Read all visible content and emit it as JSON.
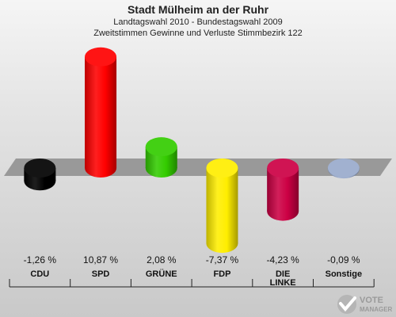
{
  "header": {
    "title": "Stadt Mülheim an der Ruhr",
    "subtitle1": "Landtagswahl 2010 - Bundestagswahl 2009",
    "subtitle2": "Zweitstimmen Gewinne und Verluste Stimmbezirk 122"
  },
  "chart_data": {
    "type": "bar",
    "title": "Stadt Mülheim an der Ruhr",
    "subtitle": "Landtagswahl 2010 - Bundestagswahl 2009 / Zweitstimmen Gewinne und Verluste Stimmbezirk 122",
    "xlabel": "",
    "ylabel": "",
    "categories": [
      "CDU",
      "SPD",
      "GRÜNE",
      "FDP",
      "DIE LINKE",
      "Sonstige"
    ],
    "category_lines": [
      [
        "CDU"
      ],
      [
        "SPD"
      ],
      [
        "GRÜNE"
      ],
      [
        "FDP"
      ],
      [
        "DIE",
        "LINKE"
      ],
      [
        "Sonstige"
      ]
    ],
    "values": [
      -1.26,
      10.87,
      2.08,
      -7.37,
      -4.23,
      -0.09
    ],
    "value_labels": [
      "-1,26 %",
      "10,87 %",
      "2,08 %",
      "-7,37 %",
      "-4,23 %",
      "-0,09 %"
    ],
    "colors": [
      "#000000",
      "#ff0000",
      "#33cc00",
      "#ffee00",
      "#cc0044",
      "#99aacc"
    ],
    "ylim": [
      -8,
      12
    ],
    "grid": false,
    "legend": "none"
  },
  "logo": {
    "text_top": "VOTE",
    "text_bottom": "MANAGER"
  }
}
